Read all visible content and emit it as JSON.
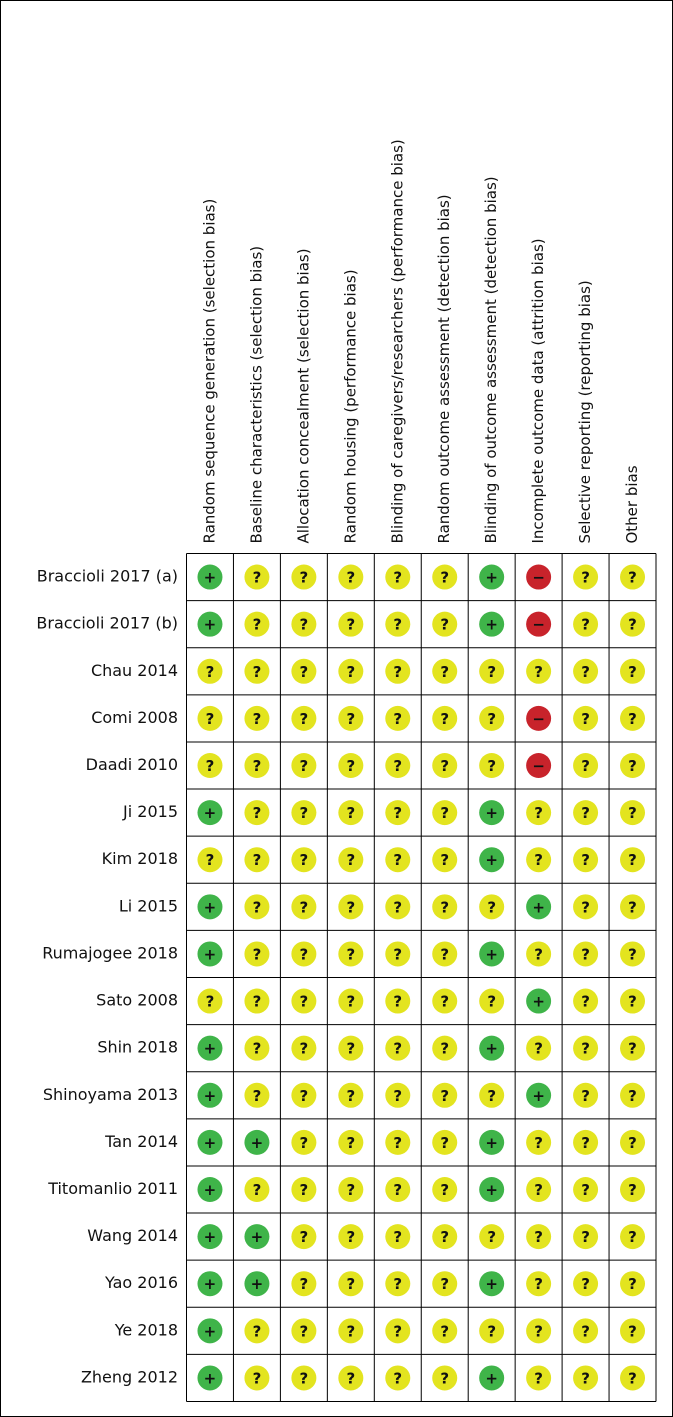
{
  "columns": [
    "Random sequence generation (selection bias)",
    "Baseline characteristics (selection bias)",
    "Allocation concealment (selection bias)",
    "Random housing (performance bias)",
    "Blinding of caregivers/researchers (performance bias)",
    "Random outcome assessment (detection bias)",
    "Blinding of outcome assessment (detection bias)",
    "Incomplete outcome data (attrition bias)",
    "Selective reporting (reporting bias)",
    "Other bias"
  ],
  "symbol_colors": {
    "+": "#3fb449",
    "?": "#e3e41f",
    "−": "#c8232b"
  },
  "rows": [
    {
      "study": "Braccioli 2017 (a)",
      "judgements": [
        "+",
        "?",
        "?",
        "?",
        "?",
        "?",
        "+",
        "−",
        "?",
        "?"
      ]
    },
    {
      "study": "Braccioli 2017 (b)",
      "judgements": [
        "+",
        "?",
        "?",
        "?",
        "?",
        "?",
        "+",
        "−",
        "?",
        "?"
      ]
    },
    {
      "study": "Chau 2014",
      "judgements": [
        "?",
        "?",
        "?",
        "?",
        "?",
        "?",
        "?",
        "?",
        "?",
        "?"
      ]
    },
    {
      "study": "Comi 2008",
      "judgements": [
        "?",
        "?",
        "?",
        "?",
        "?",
        "?",
        "?",
        "−",
        "?",
        "?"
      ]
    },
    {
      "study": "Daadi 2010",
      "judgements": [
        "?",
        "?",
        "?",
        "?",
        "?",
        "?",
        "?",
        "−",
        "?",
        "?"
      ]
    },
    {
      "study": "Ji 2015",
      "judgements": [
        "+",
        "?",
        "?",
        "?",
        "?",
        "?",
        "+",
        "?",
        "?",
        "?"
      ]
    },
    {
      "study": "Kim 2018",
      "judgements": [
        "?",
        "?",
        "?",
        "?",
        "?",
        "?",
        "+",
        "?",
        "?",
        "?"
      ]
    },
    {
      "study": "Li 2015",
      "judgements": [
        "+",
        "?",
        "?",
        "?",
        "?",
        "?",
        "?",
        "+",
        "?",
        "?"
      ]
    },
    {
      "study": "Rumajogee 2018",
      "judgements": [
        "+",
        "?",
        "?",
        "?",
        "?",
        "?",
        "+",
        "?",
        "?",
        "?"
      ]
    },
    {
      "study": "Sato 2008",
      "judgements": [
        "?",
        "?",
        "?",
        "?",
        "?",
        "?",
        "?",
        "+",
        "?",
        "?"
      ]
    },
    {
      "study": "Shin 2018",
      "judgements": [
        "+",
        "?",
        "?",
        "?",
        "?",
        "?",
        "+",
        "?",
        "?",
        "?"
      ]
    },
    {
      "study": "Shinoyama 2013",
      "judgements": [
        "+",
        "?",
        "?",
        "?",
        "?",
        "?",
        "?",
        "+",
        "?",
        "?"
      ]
    },
    {
      "study": "Tan 2014",
      "judgements": [
        "+",
        "+",
        "?",
        "?",
        "?",
        "?",
        "+",
        "?",
        "?",
        "?"
      ]
    },
    {
      "study": "Titomanlio 2011",
      "judgements": [
        "+",
        "?",
        "?",
        "?",
        "?",
        "?",
        "+",
        "?",
        "?",
        "?"
      ]
    },
    {
      "study": "Wang 2014",
      "judgements": [
        "+",
        "+",
        "?",
        "?",
        "?",
        "?",
        "?",
        "?",
        "?",
        "?"
      ]
    },
    {
      "study": "Yao 2016",
      "judgements": [
        "+",
        "+",
        "?",
        "?",
        "?",
        "?",
        "+",
        "?",
        "?",
        "?"
      ]
    },
    {
      "study": "Ye 2018",
      "judgements": [
        "+",
        "?",
        "?",
        "?",
        "?",
        "?",
        "?",
        "?",
        "?",
        "?"
      ]
    },
    {
      "study": "Zheng 2012",
      "judgements": [
        "+",
        "?",
        "?",
        "?",
        "?",
        "?",
        "+",
        "?",
        "?",
        "?"
      ]
    }
  ]
}
